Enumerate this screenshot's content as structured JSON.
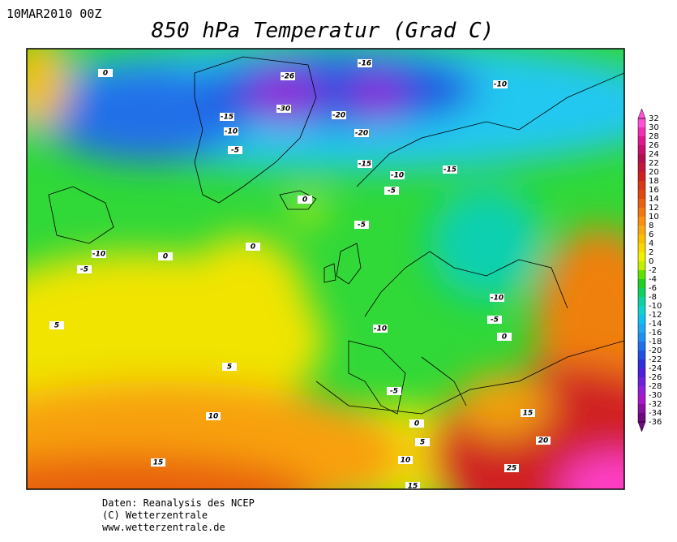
{
  "header": {
    "timestamp": "10MAR2010 00Z",
    "title": "850 hPa Temperatur (Grad C)"
  },
  "colorbar": {
    "ticks": [
      32,
      30,
      28,
      26,
      24,
      22,
      20,
      18,
      16,
      14,
      12,
      10,
      8,
      6,
      4,
      2,
      0,
      -2,
      -4,
      -6,
      -8,
      -10,
      -12,
      -14,
      -16,
      -18,
      -20,
      -22,
      -24,
      -26,
      -28,
      -30,
      -32,
      -34,
      -36
    ],
    "colors": [
      "#ff50d8",
      "#f030b0",
      "#e01890",
      "#c81070",
      "#b01050",
      "#c01838",
      "#d02020",
      "#d83818",
      "#e04810",
      "#e86010",
      "#f07810",
      "#f89010",
      "#f8a810",
      "#f8c000",
      "#f8d800",
      "#f0f000",
      "#c0f000",
      "#60e000",
      "#20d020",
      "#10d060",
      "#10d0a0",
      "#10d0d0",
      "#10c0f0",
      "#20a8f0",
      "#2090f0",
      "#2070e8",
      "#2050e0",
      "#3030d8",
      "#5020d8",
      "#7020d8",
      "#9020d8",
      "#a818c8",
      "#8810a0",
      "#700880"
    ]
  },
  "map": {
    "contour_labels": [
      0,
      -26,
      -30,
      -16,
      -10,
      -15,
      -10,
      -5,
      -20,
      -20,
      -15,
      -10,
      -15,
      -5,
      0,
      -5,
      0,
      -10,
      -5,
      0,
      5,
      -10,
      -10,
      -5,
      0,
      5,
      -5,
      10,
      15,
      0,
      5,
      20,
      10,
      15,
      25,
      15
    ]
  },
  "footer": {
    "lines": [
      "Daten: Reanalysis des NCEP",
      "(C) Wetterzentrale",
      "www.wetterzentrale.de"
    ]
  }
}
